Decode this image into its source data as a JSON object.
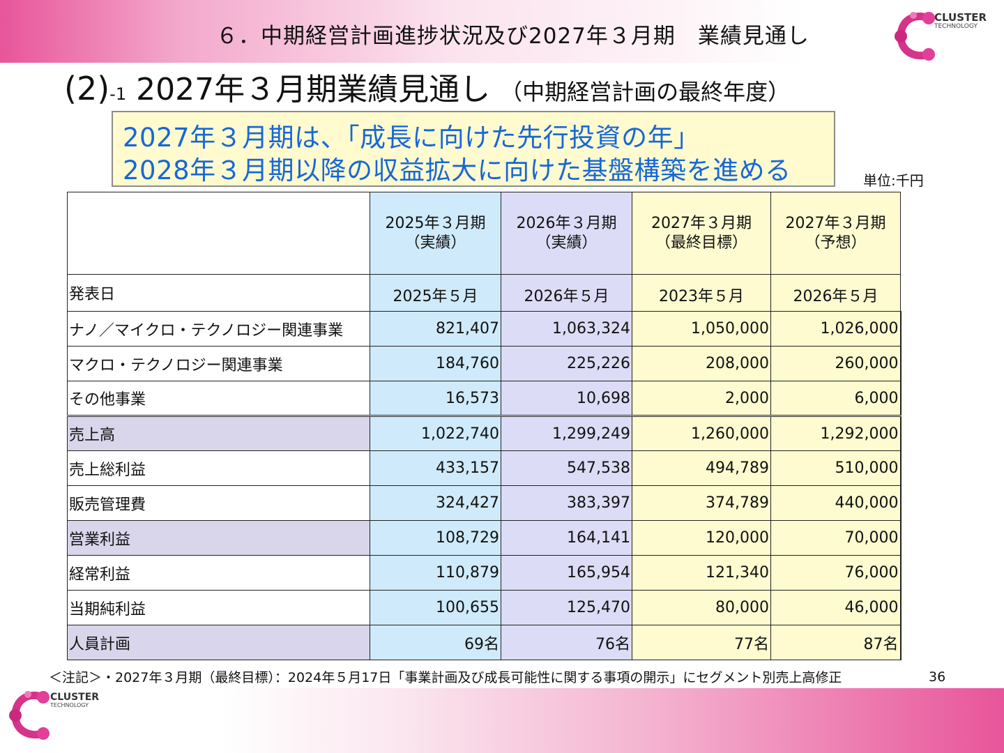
{
  "header": {
    "title": "６．中期経営計画進捗状況及び2027年３月期　業績見通し",
    "logo": {
      "name": "CLUSTER",
      "sub": "TECHNOLOGY"
    }
  },
  "section": {
    "paren": "(2)",
    "sub": "-1",
    "main": "2027年３月期業績見通し",
    "note": "（中期経営計画の最終年度）"
  },
  "callout": {
    "line1": "2027年３月期は、「成長に向けた先行投資の年」",
    "line2": "2028年３月期以降の収益拡大に向けた基盤構築を進める"
  },
  "unit": "単位:千円",
  "table": {
    "columns": [
      {
        "line1": "2025年３月期",
        "line2": "（実績）"
      },
      {
        "line1": "2026年３月期",
        "line2": "（実績）"
      },
      {
        "line1": "2027年３月期",
        "line2": "（最終目標）"
      },
      {
        "line1": "2027年３月期",
        "line2": "（予想）"
      }
    ],
    "announce_row": {
      "label": "発表日",
      "values": [
        "2025年５月",
        "2026年５月",
        "2023年５月",
        "2026年５月"
      ]
    },
    "rows": [
      {
        "label": "ナノ／マイクロ・テクノロジー関連事業",
        "values": [
          "821,407",
          "1,063,324",
          "1,050,000",
          "1,026,000"
        ]
      },
      {
        "label": "マクロ・テクノロジー関連事業",
        "values": [
          "184,760",
          "225,226",
          "208,000",
          "260,000"
        ]
      },
      {
        "label": "その他事業",
        "values": [
          "16,573",
          "10,698",
          "2,000",
          "6,000"
        ]
      },
      {
        "label": "売上高",
        "values": [
          "1,022,740",
          "1,299,249",
          "1,260,000",
          "1,292,000"
        ]
      },
      {
        "label": "売上総利益",
        "values": [
          "433,157",
          "547,538",
          "494,789",
          "510,000"
        ]
      },
      {
        "label": "販売管理費",
        "values": [
          "324,427",
          "383,397",
          "374,789",
          "440,000"
        ]
      },
      {
        "label": "営業利益",
        "values": [
          "108,729",
          "164,141",
          "120,000",
          "70,000"
        ]
      },
      {
        "label": "経常利益",
        "values": [
          "110,879",
          "165,954",
          "121,340",
          "76,000"
        ]
      },
      {
        "label": "当期純利益",
        "values": [
          "100,655",
          "125,470",
          "80,000",
          "46,000"
        ]
      },
      {
        "label": "人員計画",
        "values": [
          "69名",
          "76名",
          "77名",
          "87名"
        ]
      }
    ]
  },
  "footnote": "＜注記＞・2027年３月期（最終目標）：2024年５月17日「事業計画及び成長可能性に関する事項の開示」にセグメント別売上高修正",
  "page_number": "36"
}
